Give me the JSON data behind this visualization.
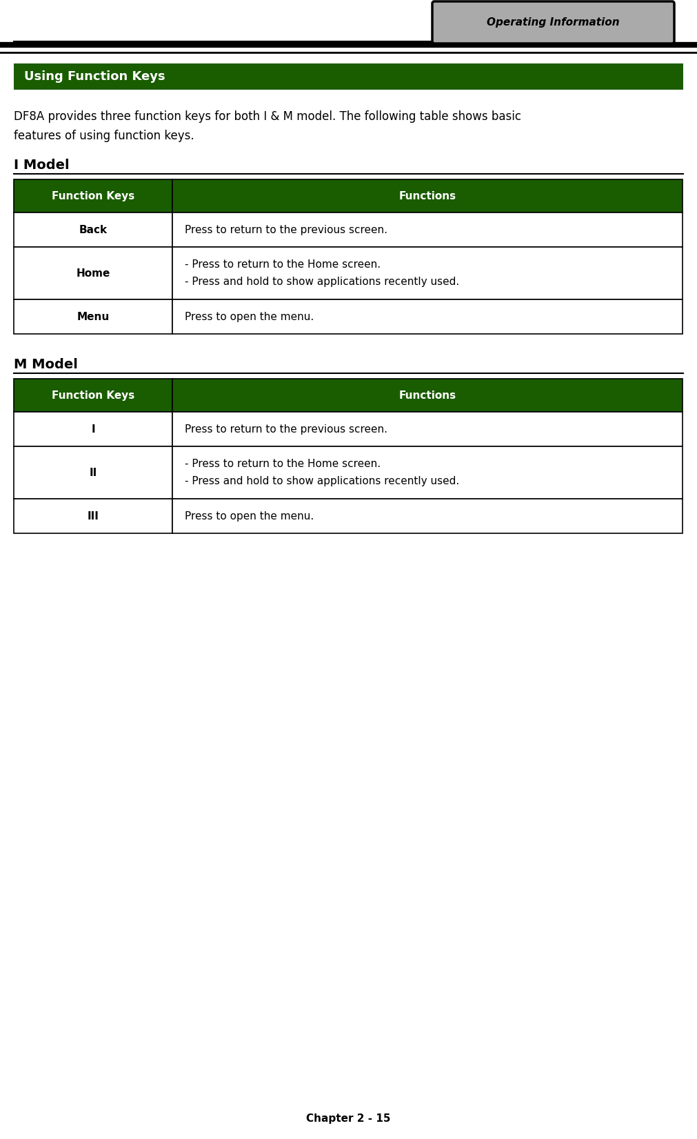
{
  "page_width": 10.11,
  "page_height": 16.51,
  "dpi": 100,
  "bg_color": "#ffffff",
  "header_tab_text": "Operating Information",
  "header_tab_bg": "#aaaaaa",
  "header_tab_border": "#000000",
  "section_banner_bg": "#1a5c00",
  "section_banner_text_color": "#ffffff",
  "section_banner_text": "Using Function Keys",
  "intro_text_line1": "DF8A provides three function keys for both I & M model. The following table shows basic",
  "intro_text_line2": "features of using function keys.",
  "i_model_label": "I Model",
  "m_model_label": "M Model",
  "table_header_bg": "#1a5c00",
  "table_header_color": "#ffffff",
  "table_col1_header": "Function Keys",
  "table_col2_header": "Functions",
  "table_border_color": "#000000",
  "i_model_rows": [
    {
      "key": "Back",
      "func": "Press to return to the previous screen.",
      "multiline": false
    },
    {
      "key": "Home",
      "func1": "- Press to return to the Home screen.",
      "func2": "- Press and hold to show applications recently used.",
      "multiline": true
    },
    {
      "key": "Menu",
      "func": "Press to open the menu.",
      "multiline": false
    }
  ],
  "m_model_rows": [
    {
      "key": "I",
      "func": "Press to return to the previous screen.",
      "multiline": false
    },
    {
      "key": "II",
      "func1": "- Press to return to the Home screen.",
      "func2": "- Press and hold to show applications recently used.",
      "multiline": true
    },
    {
      "key": "III",
      "func": "Press to open the menu.",
      "multiline": false
    }
  ],
  "footer_text": "Chapter 2 - 15",
  "tab_text_fontsize": 11,
  "banner_fontsize": 13,
  "intro_fontsize": 12,
  "model_label_fontsize": 14,
  "table_header_fontsize": 11,
  "table_cell_fontsize": 11,
  "footer_fontsize": 11
}
